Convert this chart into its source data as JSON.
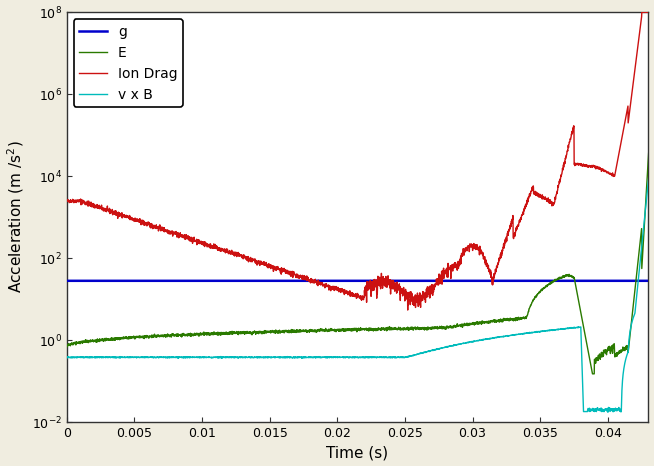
{
  "title": "",
  "xlabel": "Time (s)",
  "ylabel": "Acceleration (m /s$^2$)",
  "xlim": [
    0,
    0.043
  ],
  "ylim_log": [
    0.01,
    100000000.0
  ],
  "legend_labels": [
    "g",
    "E",
    "Ion Drag",
    "v x B"
  ],
  "legend_colors": [
    "#0000cc",
    "#2a7a00",
    "#cc1111",
    "#00bbbb"
  ],
  "background_color": "#f0ede0",
  "grid_color": "#ffffff",
  "xticks": [
    0,
    0.005,
    0.01,
    0.015,
    0.02,
    0.025,
    0.03,
    0.035,
    0.04
  ],
  "g_value": 28.0,
  "seed": 42
}
